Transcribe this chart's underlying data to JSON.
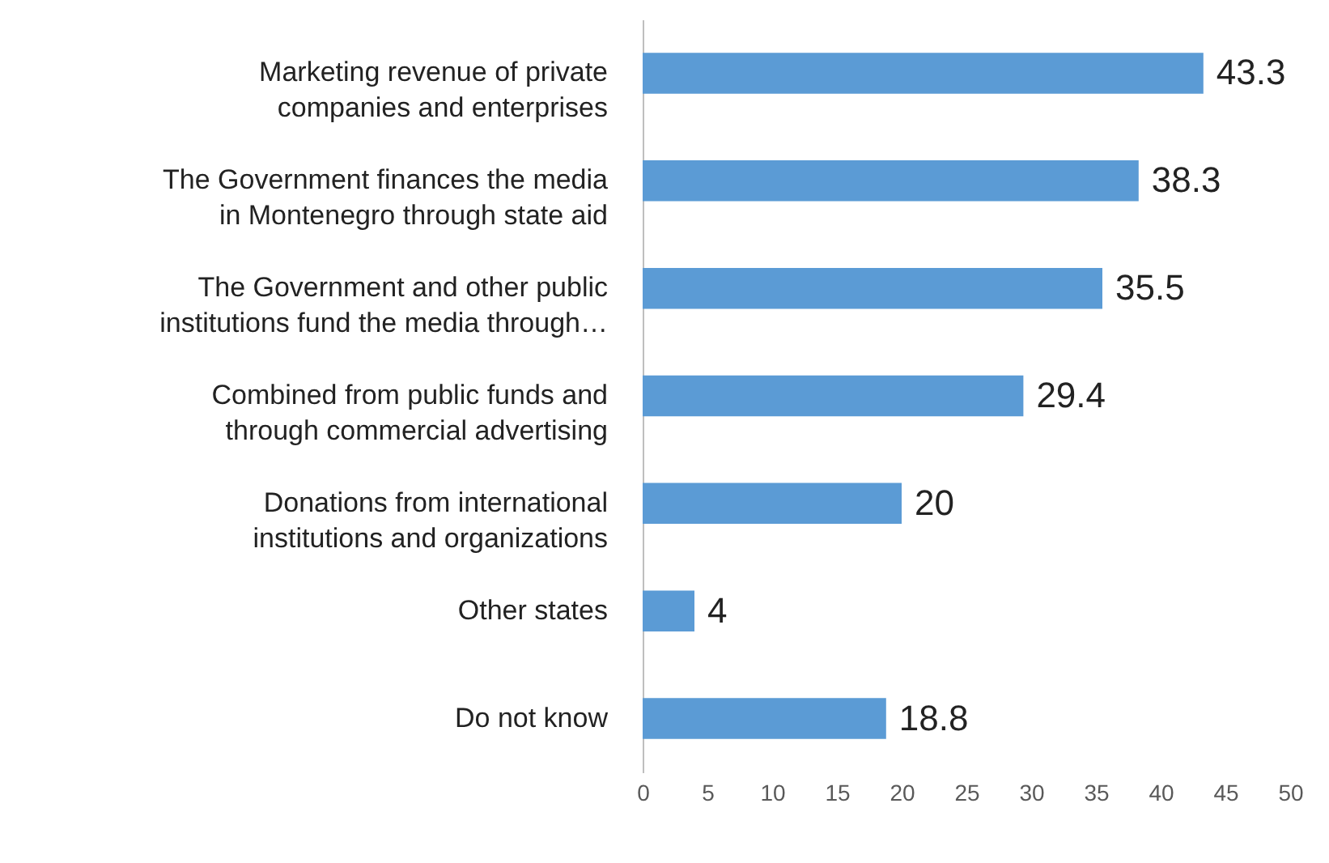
{
  "chart_data": {
    "type": "bar",
    "orientation": "horizontal",
    "categories": [
      "Marketing revenue of private companies and enterprises",
      "The Government finances the media in Montenegro through state aid",
      "The Government and other public institutions fund the media through…",
      "Combined from public funds and through commercial advertising",
      "Donations from international institutions and organizations",
      "Other states",
      "Do not know"
    ],
    "values": [
      43.3,
      38.3,
      35.5,
      29.4,
      20,
      4,
      18.8
    ],
    "color": "#5b9bd5",
    "xlim": [
      0,
      50
    ],
    "xticks": [
      0,
      5,
      10,
      15,
      20,
      25,
      30,
      35,
      40,
      45,
      50
    ],
    "grid": false,
    "data_labels": true
  }
}
